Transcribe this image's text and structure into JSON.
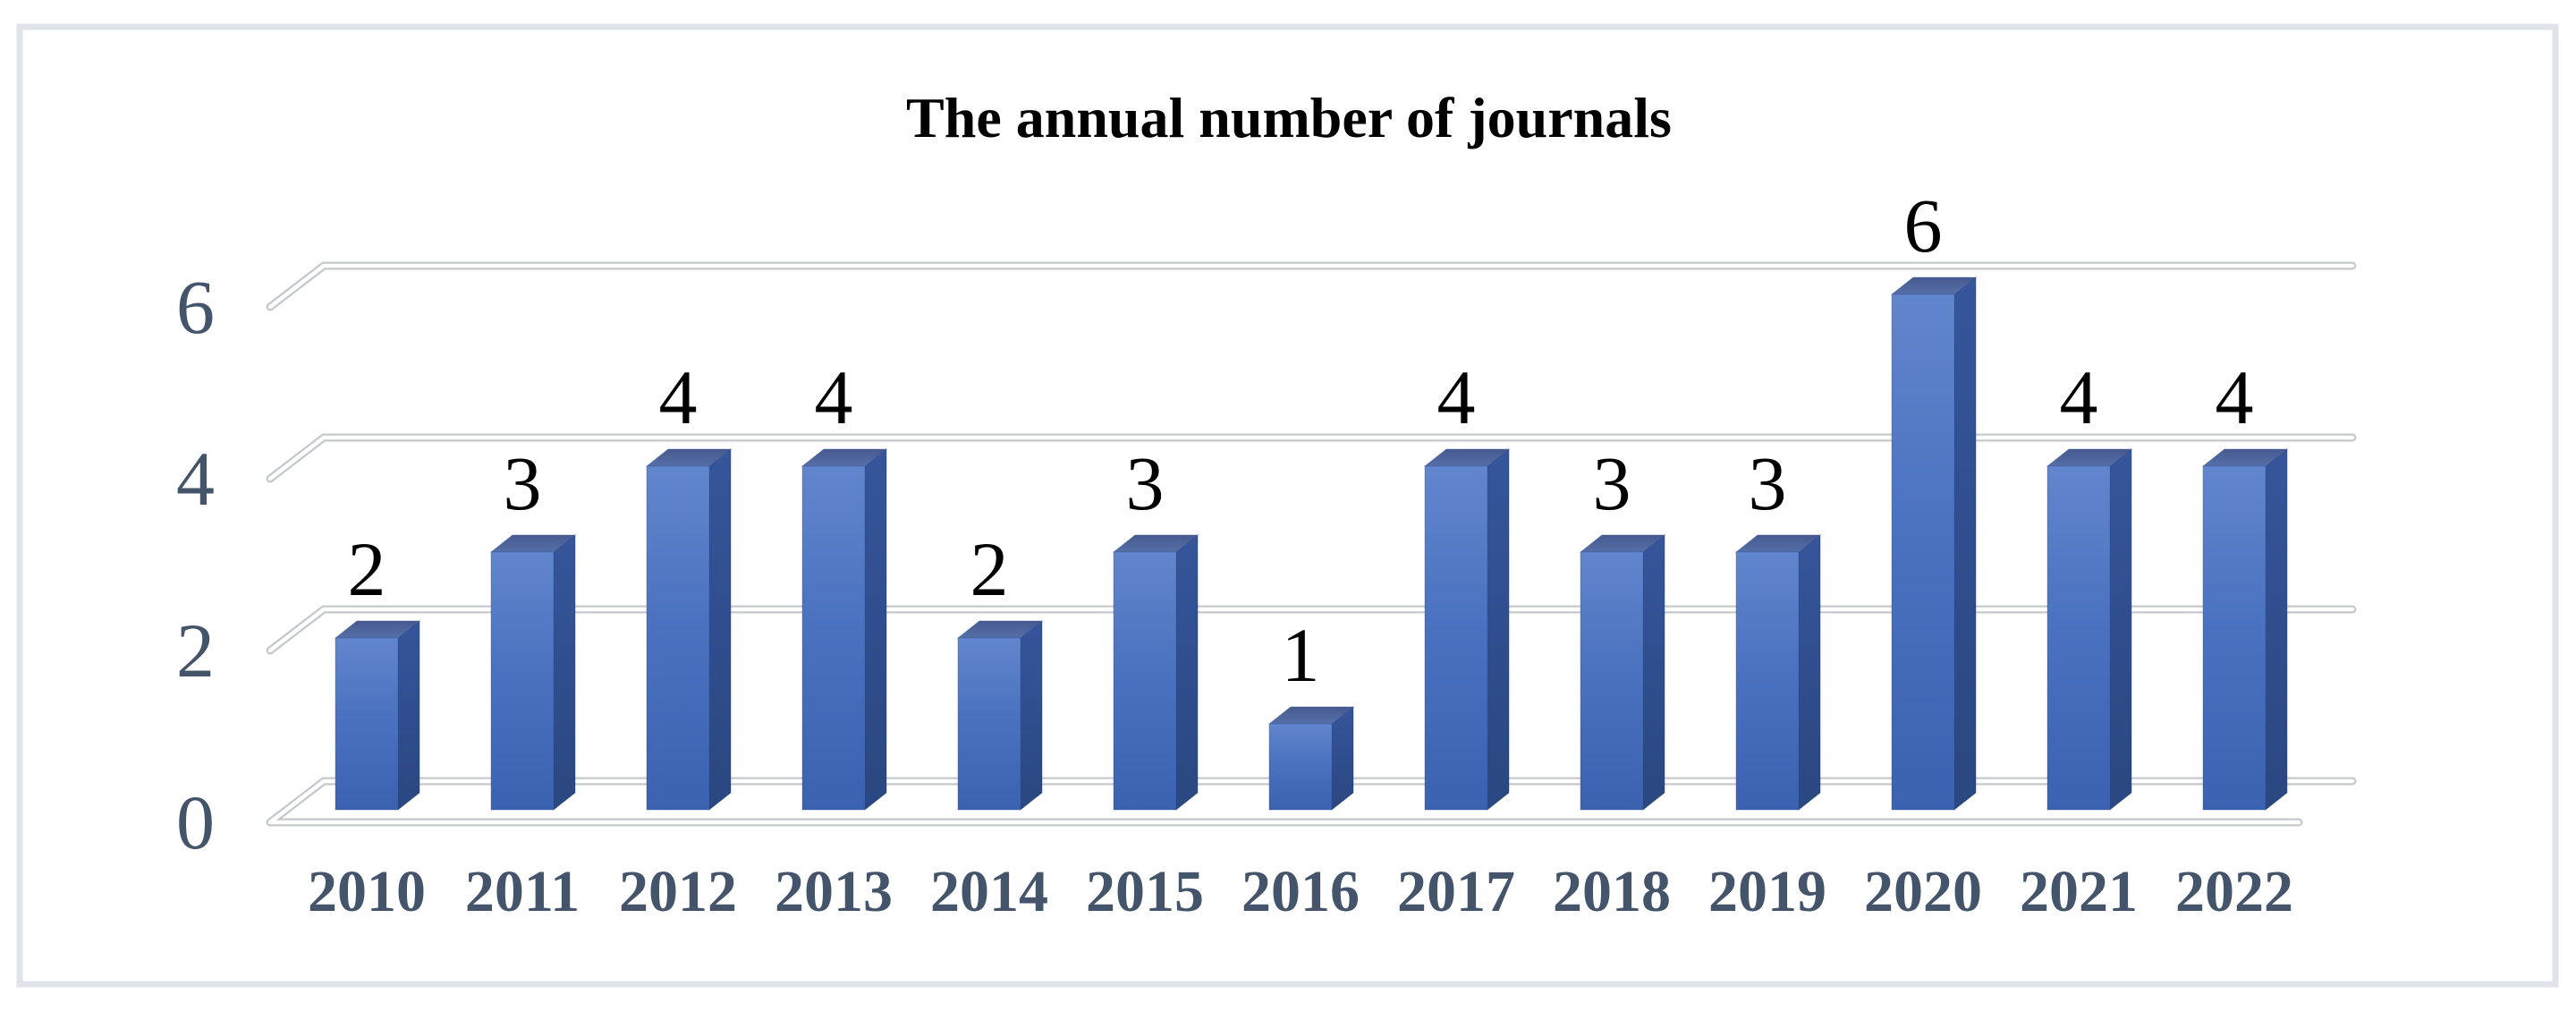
{
  "chart_data": {
    "type": "bar",
    "style": "3d-column",
    "title": "The annual number of journals",
    "categories": [
      "2010",
      "2011",
      "2012",
      "2013",
      "2014",
      "2015",
      "2016",
      "2017",
      "2018",
      "2019",
      "2020",
      "2021",
      "2022"
    ],
    "values": [
      2,
      3,
      4,
      4,
      2,
      3,
      1,
      4,
      3,
      3,
      6,
      4,
      4
    ],
    "series": [
      {
        "name": "Annual number of journals",
        "values": [
          2,
          3,
          4,
          4,
          2,
          3,
          1,
          4,
          3,
          3,
          6,
          4,
          4
        ]
      }
    ],
    "y_ticks": [
      0,
      2,
      4,
      6
    ],
    "ylim": [
      0,
      6
    ],
    "xlabel": "",
    "ylabel": "",
    "grid": "horizontal gridlines with 3D perspective risers",
    "legend_position": "none",
    "data_labels_shown": true,
    "colors": {
      "bar_front_top": "#6286cd",
      "bar_front_bottom": "#3b62b0",
      "bar_side": "#2e4c89",
      "bar_top": "#4c629b",
      "gridline": "#c5c9ce",
      "axis_label": "#44546a",
      "data_label": "#000000",
      "frame_border": "#e0e4ea",
      "background": "#ffffff"
    }
  }
}
